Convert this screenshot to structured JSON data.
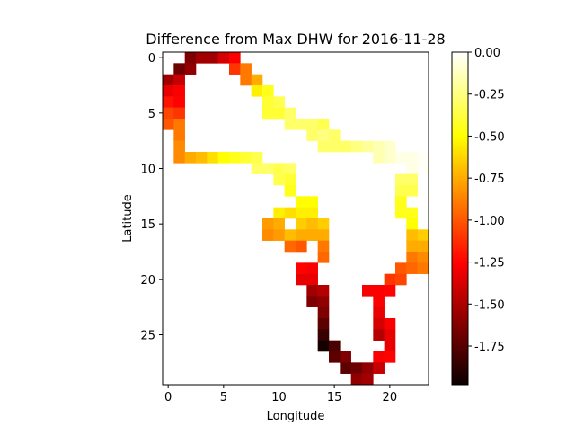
{
  "chart_data": {
    "type": "heatmap",
    "title": "Difference from Max DHW for 2016-11-28",
    "xlabel": "Longitude",
    "ylabel": "Latitude",
    "x_ticks": [
      0,
      5,
      10,
      15,
      20
    ],
    "y_ticks": [
      0,
      5,
      10,
      15,
      20,
      25
    ],
    "xlim": [
      -0.5,
      23.5
    ],
    "ylim": [
      29.5,
      -0.5
    ],
    "colormap": "hot",
    "colorbar": {
      "vmin": -1.98,
      "vmax": 0.0,
      "ticks": [
        "0.00",
        "-0.25",
        "-0.50",
        "-0.75",
        "-1.00",
        "-1.25",
        "-1.50",
        "-1.75"
      ],
      "tick_values": [
        0.0,
        -0.25,
        -0.5,
        -0.75,
        -1.0,
        -1.25,
        -1.5,
        -1.75
      ]
    },
    "cells": [
      {
        "row": 0,
        "values": [
          [
            2,
            -1.65
          ],
          [
            3,
            -1.55
          ],
          [
            4,
            -1.55
          ],
          [
            5,
            -1.4
          ],
          [
            6,
            -1.3
          ]
        ]
      },
      {
        "row": 1,
        "values": [
          [
            1,
            -1.7
          ],
          [
            2,
            -1.6
          ],
          [
            6,
            -1.1
          ],
          [
            7,
            -0.9
          ]
        ]
      },
      {
        "row": 2,
        "values": [
          [
            0,
            -1.55
          ],
          [
            1,
            -1.45
          ],
          [
            7,
            -0.9
          ],
          [
            8,
            -0.75
          ]
        ]
      },
      {
        "row": 3,
        "values": [
          [
            0,
            -1.35
          ],
          [
            1,
            -1.3
          ],
          [
            8,
            -0.55
          ],
          [
            9,
            -0.45
          ]
        ]
      },
      {
        "row": 4,
        "values": [
          [
            0,
            -1.2
          ],
          [
            1,
            -1.25
          ],
          [
            9,
            -0.4
          ],
          [
            10,
            -0.35
          ]
        ]
      },
      {
        "row": 5,
        "values": [
          [
            0,
            -1.05
          ],
          [
            1,
            -1.1
          ],
          [
            9,
            -0.4
          ],
          [
            10,
            -0.4
          ],
          [
            11,
            -0.3
          ]
        ]
      },
      {
        "row": 6,
        "values": [
          [
            0,
            -1.0
          ],
          [
            1,
            -0.9
          ],
          [
            11,
            -0.3
          ],
          [
            12,
            -0.3
          ],
          [
            13,
            -0.3
          ],
          [
            14,
            -0.35
          ]
        ]
      },
      {
        "row": 7,
        "values": [
          [
            1,
            -0.9
          ],
          [
            13,
            -0.3
          ],
          [
            14,
            -0.25
          ],
          [
            15,
            -0.3
          ]
        ]
      },
      {
        "row": 8,
        "values": [
          [
            1,
            -0.85
          ],
          [
            14,
            -0.3
          ],
          [
            15,
            -0.3
          ],
          [
            16,
            -0.3
          ],
          [
            17,
            -0.25
          ],
          [
            18,
            -0.2
          ],
          [
            19,
            -0.15
          ],
          [
            20,
            -0.1
          ]
        ]
      },
      {
        "row": 9,
        "values": [
          [
            1,
            -0.85
          ],
          [
            2,
            -0.75
          ],
          [
            3,
            -0.7
          ],
          [
            4,
            -0.6
          ],
          [
            5,
            -0.5
          ],
          [
            6,
            -0.45
          ],
          [
            7,
            -0.4
          ],
          [
            8,
            -0.35
          ],
          [
            19,
            -0.15
          ],
          [
            20,
            -0.1
          ],
          [
            21,
            -0.05
          ],
          [
            22,
            -0.05
          ],
          [
            23,
            -0.02
          ]
        ]
      },
      {
        "row": 10,
        "values": [
          [
            8,
            -0.3
          ],
          [
            9,
            -0.3
          ],
          [
            10,
            -0.35
          ],
          [
            11,
            -0.3
          ],
          [
            22,
            -0.05
          ],
          [
            23,
            -0.02
          ]
        ]
      },
      {
        "row": 11,
        "values": [
          [
            10,
            -0.35
          ],
          [
            11,
            -0.4
          ],
          [
            21,
            -0.3
          ],
          [
            22,
            -0.3
          ]
        ]
      },
      {
        "row": 12,
        "values": [
          [
            11,
            -0.45
          ],
          [
            21,
            -0.35
          ],
          [
            22,
            -0.35
          ]
        ]
      },
      {
        "row": 13,
        "values": [
          [
            12,
            -0.5
          ],
          [
            13,
            -0.5
          ],
          [
            21,
            -0.45
          ]
        ]
      },
      {
        "row": 14,
        "values": [
          [
            10,
            -0.55
          ],
          [
            11,
            -0.6
          ],
          [
            12,
            -0.55
          ],
          [
            13,
            -0.55
          ],
          [
            21,
            -0.45
          ],
          [
            22,
            -0.45
          ]
        ]
      },
      {
        "row": 15,
        "values": [
          [
            9,
            -0.8
          ],
          [
            10,
            -0.75
          ],
          [
            12,
            -0.65
          ],
          [
            13,
            -0.7
          ],
          [
            14,
            -0.65
          ],
          [
            22,
            -0.5
          ]
        ]
      },
      {
        "row": 16,
        "values": [
          [
            9,
            -0.85
          ],
          [
            10,
            -0.8
          ],
          [
            11,
            -0.7
          ],
          [
            12,
            -0.75
          ],
          [
            13,
            -0.75
          ],
          [
            14,
            -0.75
          ],
          [
            22,
            -0.7
          ],
          [
            23,
            -0.65
          ]
        ]
      },
      {
        "row": 17,
        "values": [
          [
            11,
            -0.95
          ],
          [
            12,
            -1.0
          ],
          [
            14,
            -0.9
          ],
          [
            22,
            -0.75
          ],
          [
            23,
            -0.75
          ]
        ]
      },
      {
        "row": 18,
        "values": [
          [
            14,
            -0.95
          ],
          [
            22,
            -0.9
          ],
          [
            23,
            -0.85
          ]
        ]
      },
      {
        "row": 19,
        "values": [
          [
            12,
            -1.25
          ],
          [
            13,
            -1.3
          ],
          [
            21,
            -1.0
          ],
          [
            22,
            -0.95
          ],
          [
            23,
            -0.9
          ]
        ]
      },
      {
        "row": 20,
        "values": [
          [
            12,
            -1.35
          ],
          [
            13,
            -1.35
          ],
          [
            20,
            -1.1
          ],
          [
            21,
            -1.05
          ]
        ]
      },
      {
        "row": 21,
        "values": [
          [
            13,
            -1.55
          ],
          [
            14,
            -1.5
          ],
          [
            18,
            -1.3
          ],
          [
            19,
            -1.3
          ],
          [
            20,
            -1.25
          ]
        ]
      },
      {
        "row": 22,
        "values": [
          [
            13,
            -1.65
          ],
          [
            14,
            -1.6
          ],
          [
            19,
            -1.3
          ]
        ]
      },
      {
        "row": 23,
        "values": [
          [
            14,
            -1.65
          ],
          [
            19,
            -1.35
          ]
        ]
      },
      {
        "row": 24,
        "values": [
          [
            14,
            -1.75
          ],
          [
            19,
            -1.4
          ],
          [
            20,
            -1.3
          ]
        ]
      },
      {
        "row": 25,
        "values": [
          [
            14,
            -1.85
          ],
          [
            19,
            -1.5
          ],
          [
            20,
            -1.35
          ]
        ]
      },
      {
        "row": 26,
        "values": [
          [
            14,
            -1.95
          ],
          [
            15,
            -1.8
          ],
          [
            20,
            -1.35
          ]
        ]
      },
      {
        "row": 27,
        "values": [
          [
            15,
            -1.75
          ],
          [
            16,
            -1.65
          ],
          [
            19,
            -1.3
          ],
          [
            20,
            -1.25
          ]
        ]
      },
      {
        "row": 28,
        "values": [
          [
            16,
            -1.75
          ],
          [
            17,
            -1.7
          ],
          [
            18,
            -1.6
          ],
          [
            19,
            -1.45
          ]
        ]
      },
      {
        "row": 29,
        "values": [
          [
            17,
            -1.6
          ],
          [
            18,
            -1.55
          ]
        ]
      }
    ]
  }
}
